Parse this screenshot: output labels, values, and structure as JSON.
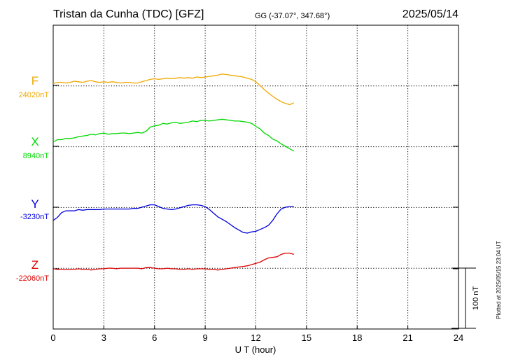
{
  "header": {
    "station": "Tristan da Cunha (TDC)  [GFZ]",
    "coords": "GG (-37.07°, 347.68°)",
    "date": "2025/05/14"
  },
  "footer": {
    "plotted": "Plotted at 2025/05/15 23:04 UT",
    "scale_label": "100 nT"
  },
  "chart_data": {
    "type": "line",
    "xlabel": "U T (hour)",
    "xlim": [
      0,
      24
    ],
    "xticks": [
      "0",
      "3",
      "6",
      "9",
      "12",
      "15",
      "18",
      "21",
      "24"
    ],
    "grid": true,
    "scale_bar_nT": 100,
    "series": [
      {
        "name": "F",
        "base_label": "24020nT",
        "baseline_nT": 24020,
        "color": "#f0a800",
        "x": [
          0,
          0.25,
          0.5,
          0.75,
          1,
          1.25,
          1.5,
          1.75,
          2,
          2.25,
          2.5,
          2.75,
          3,
          3.25,
          3.5,
          3.75,
          4,
          4.25,
          4.5,
          4.75,
          5,
          5.25,
          5.5,
          5.75,
          6,
          6.25,
          6.5,
          6.75,
          7,
          7.25,
          7.5,
          7.75,
          8,
          8.25,
          8.5,
          8.75,
          9,
          9.25,
          9.5,
          9.75,
          10,
          10.25,
          10.5,
          10.75,
          11,
          11.25,
          11.5,
          11.75,
          12,
          12.25,
          12.5,
          12.75,
          13,
          13.25,
          13.5,
          13.75,
          14,
          14.25
        ],
        "values": [
          24023,
          24025,
          24025,
          24024,
          24025,
          24027,
          24026,
          24025,
          24027,
          24028,
          24026,
          24025,
          24026,
          24025,
          24026,
          24025,
          24024,
          24025,
          24025,
          24024,
          24024,
          24026,
          24028,
          24030,
          24031,
          24030,
          24031,
          24032,
          24031,
          24032,
          24033,
          24032,
          24033,
          24032,
          24034,
          24033,
          24034,
          24035,
          24036,
          24037,
          24039,
          24038,
          24037,
          24036,
          24035,
          24034,
          24032,
          24030,
          24026,
          24020,
          24013,
          24007,
          24002,
          23997,
          23993,
          23990,
          23988,
          23991
        ]
      },
      {
        "name": "X",
        "base_label": "8940nT",
        "baseline_nT": 8940,
        "color": "#00d800",
        "x": [
          0,
          0.25,
          0.5,
          0.75,
          1,
          1.25,
          1.5,
          1.75,
          2,
          2.25,
          2.5,
          2.75,
          3,
          3.25,
          3.5,
          3.75,
          4,
          4.25,
          4.5,
          4.75,
          5,
          5.25,
          5.5,
          5.75,
          6,
          6.25,
          6.5,
          6.75,
          7,
          7.25,
          7.5,
          7.75,
          8,
          8.25,
          8.5,
          8.75,
          9,
          9.25,
          9.5,
          9.75,
          10,
          10.25,
          10.5,
          10.75,
          11,
          11.25,
          11.5,
          11.75,
          12,
          12.25,
          12.5,
          12.75,
          13,
          13.25,
          13.5,
          13.75,
          14,
          14.25
        ],
        "values": [
          8947,
          8951,
          8951,
          8953,
          8953,
          8954,
          8956,
          8957,
          8958,
          8960,
          8959,
          8961,
          8962,
          8960,
          8961,
          8961,
          8962,
          8962,
          8961,
          8962,
          8963,
          8962,
          8965,
          8972,
          8974,
          8975,
          8978,
          8977,
          8979,
          8980,
          8978,
          8979,
          8980,
          8982,
          8981,
          8983,
          8983,
          8982,
          8983,
          8984,
          8985,
          8984,
          8983,
          8982,
          8982,
          8981,
          8980,
          8978,
          8973,
          8969,
          8962,
          8958,
          8952,
          8949,
          8944,
          8940,
          8936,
          8932
        ]
      },
      {
        "name": "Y",
        "base_label": "-3230nT",
        "baseline_nT": -3230,
        "color": "#0000dd",
        "x": [
          0,
          0.25,
          0.5,
          0.75,
          1,
          1.25,
          1.5,
          1.75,
          2,
          2.25,
          2.5,
          2.75,
          3,
          3.25,
          3.5,
          3.75,
          4,
          4.25,
          4.5,
          4.75,
          5,
          5.25,
          5.5,
          5.75,
          6,
          6.25,
          6.5,
          6.75,
          7,
          7.25,
          7.5,
          7.75,
          8,
          8.25,
          8.5,
          8.75,
          9,
          9.25,
          9.5,
          9.75,
          10,
          10.25,
          10.5,
          10.75,
          11,
          11.25,
          11.5,
          11.75,
          12,
          12.25,
          12.5,
          12.75,
          13,
          13.25,
          13.5,
          13.75,
          14,
          14.25
        ],
        "values": [
          -3252,
          -3247,
          -3239,
          -3236,
          -3236,
          -3236,
          -3234,
          -3235,
          -3234,
          -3234,
          -3234,
          -3234,
          -3233,
          -3233,
          -3233,
          -3233,
          -3233,
          -3233,
          -3233,
          -3232,
          -3232,
          -3230,
          -3228,
          -3226,
          -3226,
          -3229,
          -3232,
          -3233,
          -3234,
          -3233,
          -3231,
          -3229,
          -3227,
          -3226,
          -3226,
          -3227,
          -3229,
          -3234,
          -3240,
          -3246,
          -3250,
          -3254,
          -3259,
          -3264,
          -3268,
          -3272,
          -3273,
          -3271,
          -3270,
          -3267,
          -3264,
          -3260,
          -3252,
          -3241,
          -3233,
          -3230,
          -3229,
          -3229
        ]
      },
      {
        "name": "Z",
        "base_label": "-22060nT",
        "baseline_nT": -22060,
        "color": "#dd0000",
        "x": [
          0,
          0.25,
          0.5,
          0.75,
          1,
          1.25,
          1.5,
          1.75,
          2,
          2.25,
          2.5,
          2.75,
          3,
          3.25,
          3.5,
          3.75,
          4,
          4.25,
          4.5,
          4.75,
          5,
          5.25,
          5.5,
          5.75,
          6,
          6.25,
          6.5,
          6.75,
          7,
          7.25,
          7.5,
          7.75,
          8,
          8.25,
          8.5,
          8.75,
          9,
          9.25,
          9.5,
          9.75,
          10,
          10.25,
          10.5,
          10.75,
          11,
          11.25,
          11.5,
          11.75,
          12,
          12.25,
          12.5,
          12.75,
          13,
          13.25,
          13.5,
          13.75,
          14,
          14.25
        ],
        "values": [
          -22060,
          -22061,
          -22061,
          -22061,
          -22061,
          -22061,
          -22060,
          -22061,
          -22061,
          -22062,
          -22061,
          -22060,
          -22060,
          -22059,
          -22059,
          -22060,
          -22059,
          -22059,
          -22059,
          -22059,
          -22059,
          -22060,
          -22058,
          -22058,
          -22059,
          -22060,
          -22060,
          -22059,
          -22060,
          -22060,
          -22061,
          -22061,
          -22060,
          -22061,
          -22060,
          -22060,
          -22060,
          -22061,
          -22061,
          -22062,
          -22061,
          -22060,
          -22059,
          -22058,
          -22057,
          -22056,
          -22055,
          -22053,
          -22051,
          -22049,
          -22045,
          -22042,
          -22041,
          -22040,
          -22036,
          -22034,
          -22034,
          -22036
        ]
      }
    ]
  }
}
